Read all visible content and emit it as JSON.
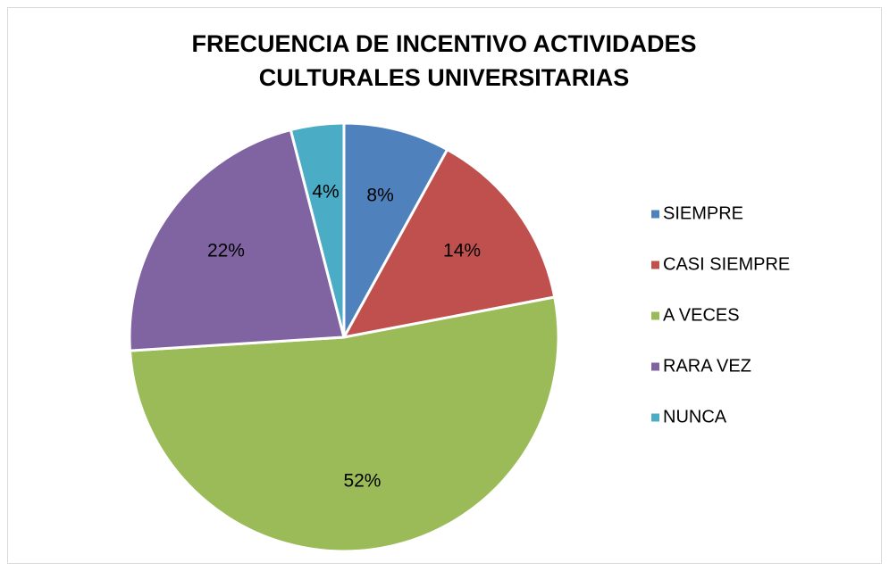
{
  "chart_data": {
    "type": "pie",
    "title": [
      "FRECUENCIA DE INCENTIVO ACTIVIDADES",
      "CULTURALES UNIVERSITARIAS"
    ],
    "categories": [
      "SIEMPRE",
      "CASI SIEMPRE",
      "A VECES",
      "RARA VEZ",
      "NUNCA"
    ],
    "values": [
      8,
      14,
      52,
      22,
      4
    ],
    "value_labels": [
      "8%",
      "14%",
      "52%",
      "22%",
      "4%"
    ],
    "colors": [
      "#4f81bd",
      "#c0504d",
      "#9bbb59",
      "#8064a2",
      "#4bacc6"
    ],
    "legend": "right"
  }
}
